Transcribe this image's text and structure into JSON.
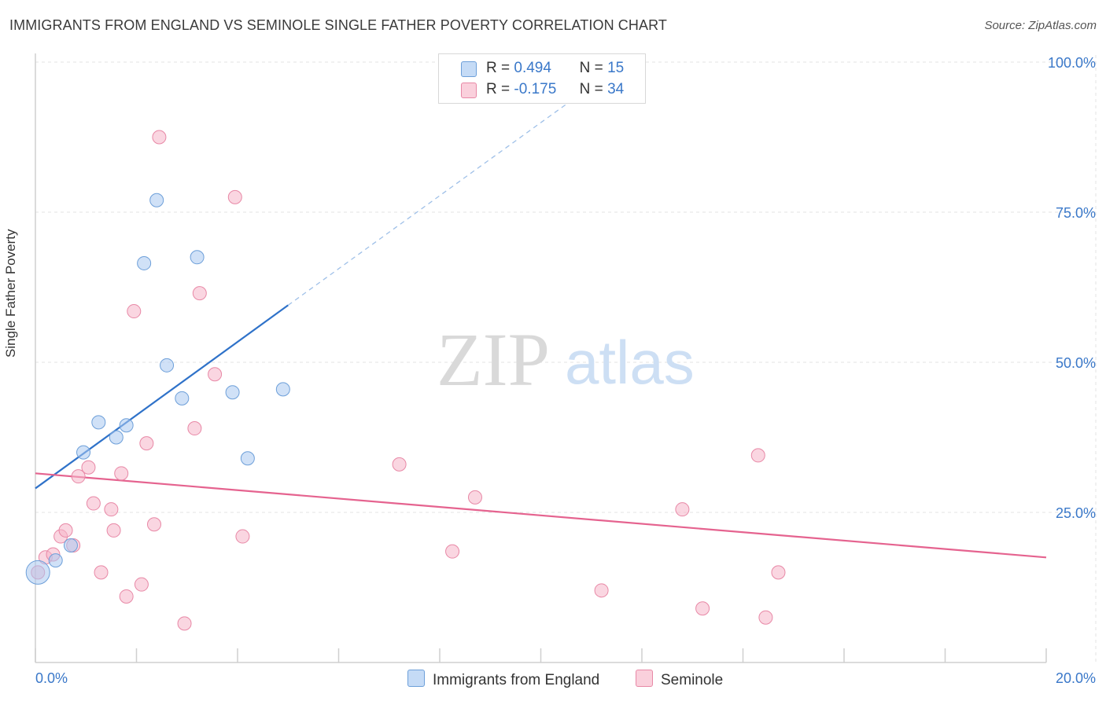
{
  "title": "IMMIGRANTS FROM ENGLAND VS SEMINOLE SINGLE FATHER POVERTY CORRELATION CHART",
  "source": "Source: ZipAtlas.com",
  "watermark": {
    "zip": "ZIP",
    "atlas": "atlas"
  },
  "legend_top": {
    "rows": [
      {
        "r_label": "R =",
        "r_value": "0.494",
        "n_label": "N =",
        "n_value": "15",
        "color": "#a9c8f0"
      },
      {
        "r_label": "R =",
        "r_value": "-0.175",
        "n_label": "N =",
        "n_value": "34",
        "color": "#f5b5c8"
      }
    ]
  },
  "legend_bottom": [
    {
      "label": "Immigrants from England",
      "color": "#a9c8f0"
    },
    {
      "label": "Seminole",
      "color": "#f5b5c8"
    }
  ],
  "chart_data": {
    "type": "scatter",
    "title": "IMMIGRANTS FROM ENGLAND VS SEMINOLE SINGLE FATHER POVERTY CORRELATION CHART",
    "xlabel": "",
    "ylabel": "Single Father Poverty",
    "xlim": [
      0,
      20
    ],
    "ylim": [
      0,
      105
    ],
    "x_tick_labels": [
      "0.0%",
      "20.0%"
    ],
    "y_ticks": [
      25,
      50,
      75,
      100
    ],
    "y_tick_labels": [
      "25.0%",
      "50.0%",
      "75.0%",
      "100.0%"
    ],
    "grid": true,
    "legend_position": "top-center",
    "series": [
      {
        "name": "Immigrants from England",
        "color": "#a9c8f0",
        "stroke": "#6d9fd9",
        "points": [
          {
            "x": 0.05,
            "y": 15.0,
            "big": true
          },
          {
            "x": 0.4,
            "y": 17.0
          },
          {
            "x": 0.7,
            "y": 19.5
          },
          {
            "x": 0.95,
            "y": 35.0
          },
          {
            "x": 1.25,
            "y": 40.0
          },
          {
            "x": 1.6,
            "y": 37.5
          },
          {
            "x": 1.8,
            "y": 39.5
          },
          {
            "x": 2.15,
            "y": 66.5
          },
          {
            "x": 2.4,
            "y": 77.0
          },
          {
            "x": 2.6,
            "y": 49.5
          },
          {
            "x": 2.9,
            "y": 44.0
          },
          {
            "x": 3.2,
            "y": 67.5
          },
          {
            "x": 3.9,
            "y": 45.0
          },
          {
            "x": 4.2,
            "y": 34.0
          },
          {
            "x": 4.9,
            "y": 45.5
          }
        ],
        "trend": {
          "x0": 0.0,
          "y0": 29.0,
          "x1": 5.0,
          "y1": 59.5,
          "dash_to_x": 11.0,
          "dash_to_y": 96.0,
          "color": "#2f72c9"
        }
      },
      {
        "name": "Seminole",
        "color": "#f5b5c8",
        "stroke": "#e888a6",
        "points": [
          {
            "x": 0.05,
            "y": 15.0
          },
          {
            "x": 0.2,
            "y": 17.5
          },
          {
            "x": 0.35,
            "y": 18.0
          },
          {
            "x": 0.5,
            "y": 21.0
          },
          {
            "x": 0.6,
            "y": 22.0
          },
          {
            "x": 0.75,
            "y": 19.5
          },
          {
            "x": 0.85,
            "y": 31.0
          },
          {
            "x": 1.05,
            "y": 32.5
          },
          {
            "x": 1.15,
            "y": 26.5
          },
          {
            "x": 1.3,
            "y": 15.0
          },
          {
            "x": 1.5,
            "y": 25.5
          },
          {
            "x": 1.55,
            "y": 22.0
          },
          {
            "x": 1.7,
            "y": 31.5
          },
          {
            "x": 1.8,
            "y": 11.0
          },
          {
            "x": 1.95,
            "y": 58.5
          },
          {
            "x": 2.1,
            "y": 13.0
          },
          {
            "x": 2.2,
            "y": 36.5
          },
          {
            "x": 2.35,
            "y": 23.0
          },
          {
            "x": 2.45,
            "y": 87.5
          },
          {
            "x": 2.95,
            "y": 6.5
          },
          {
            "x": 3.15,
            "y": 39.0
          },
          {
            "x": 3.25,
            "y": 61.5
          },
          {
            "x": 3.55,
            "y": 48.0
          },
          {
            "x": 3.95,
            "y": 77.5
          },
          {
            "x": 4.1,
            "y": 21.0
          },
          {
            "x": 7.2,
            "y": 33.0
          },
          {
            "x": 8.25,
            "y": 18.5
          },
          {
            "x": 8.7,
            "y": 27.5
          },
          {
            "x": 11.2,
            "y": 12.0
          },
          {
            "x": 12.8,
            "y": 25.5
          },
          {
            "x": 13.2,
            "y": 9.0
          },
          {
            "x": 14.3,
            "y": 34.5
          },
          {
            "x": 14.45,
            "y": 7.5
          },
          {
            "x": 14.7,
            "y": 15.0
          }
        ],
        "trend": {
          "x0": 0.0,
          "y0": 31.5,
          "x1": 20.0,
          "y1": 17.5,
          "color": "#e5638f"
        }
      }
    ]
  }
}
